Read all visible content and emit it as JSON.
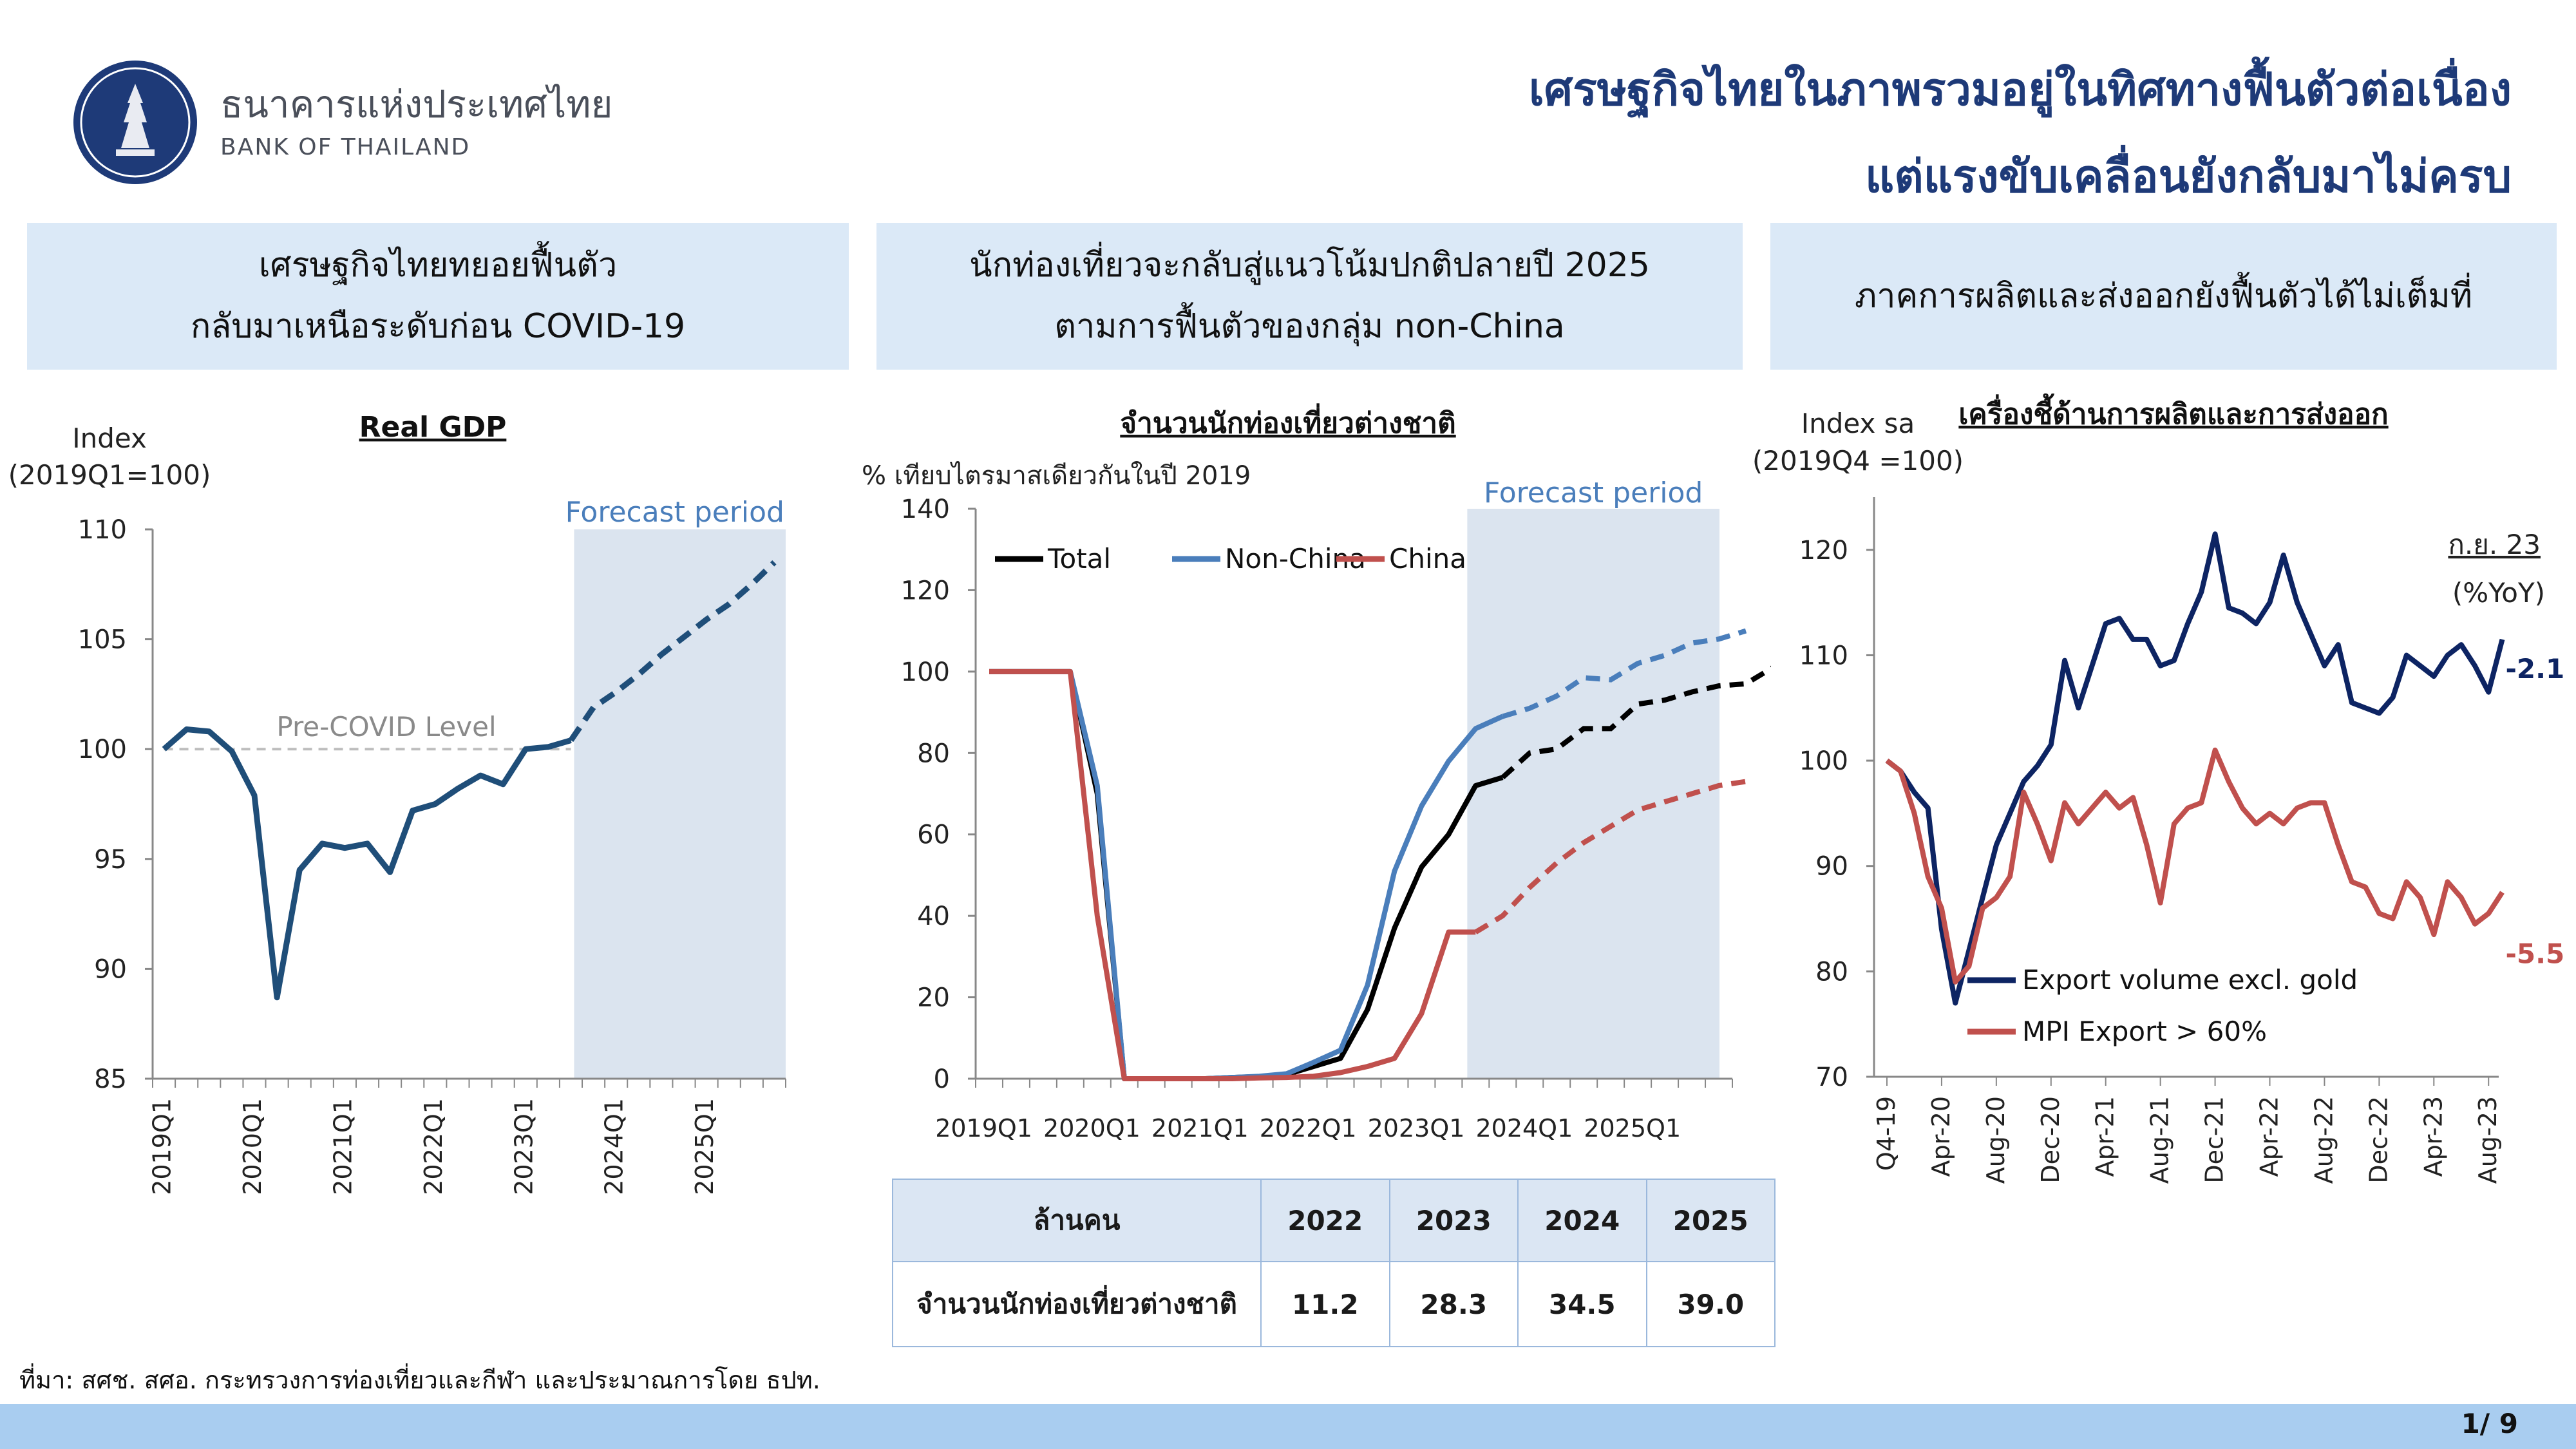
{
  "header": {
    "bank_name_th": "ธนาคารแห่งประเทศไทย",
    "bank_name_en": "BANK OF THAILAND",
    "title_line1": "เศรษฐกิจไทยในภาพรวมอยู่ในทิศทางฟื้นตัวต่อเนื่อง",
    "title_line2": "แต่แรงขับเคลื่อนยังกลับมาไม่ครบ"
  },
  "panels": [
    {
      "line1": "เศรษฐกิจไทยทยอยฟื้นตัว",
      "line2": "กลับมาเหนือระดับก่อน COVID-19"
    },
    {
      "line1": "นักท่องเที่ยวจะกลับสู่แนวโน้มปกติปลายปี 2025",
      "line2": "ตามการฟื้นตัวของกลุ่ม non-China"
    },
    {
      "line1": "ภาคการผลิตและส่งออกยังฟื้นตัวได้ไม่เต็มที่",
      "line2": ""
    }
  ],
  "colors": {
    "navy": "#1e3a78",
    "gdp_line": "#1f4e79",
    "forecast_shade": "#dbe4ef",
    "non_china": "#4a7ebb",
    "china": "#c0504d",
    "total": "#000000",
    "export_line": "#0d2463",
    "mpi_line": "#c0504d",
    "panel_bg": "#dbe9f7",
    "footer": "#a9cdf0"
  },
  "chart_data": [
    {
      "type": "line",
      "title": "Real GDP",
      "ylabel_line1": "Index",
      "ylabel_line2": "(2019Q1=100)",
      "ylim": [
        85,
        110
      ],
      "yticks": [
        85,
        90,
        95,
        100,
        105,
        110
      ],
      "xtick_labels": [
        "2019Q1",
        "2020Q1",
        "2021Q1",
        "2022Q1",
        "2023Q1",
        "2024Q1",
        "2025Q1"
      ],
      "forecast_label": "Forecast period",
      "reference_label": "Pre-COVID Level",
      "reference_value": 100,
      "actual": [
        100.0,
        100.9,
        100.8,
        99.9,
        97.9,
        88.7,
        94.5,
        95.7,
        95.5,
        95.7,
        94.4,
        97.2,
        97.5,
        98.2,
        98.8,
        98.4,
        100.0,
        100.1,
        100.4
      ],
      "forecast": [
        100.4,
        101.9,
        102.6,
        103.4,
        104.3,
        105.1,
        105.9,
        106.6,
        107.5,
        108.5
      ],
      "forecast_start_index": 18
    },
    {
      "type": "line",
      "title": "จำนวนนักท่องเที่ยวต่างชาติ",
      "ylabel": "% เทียบไตรมาสเดียวกันในปี 2019",
      "ylim": [
        0,
        140
      ],
      "yticks": [
        0,
        20,
        40,
        60,
        80,
        100,
        120,
        140
      ],
      "xtick_labels": [
        "2019Q1",
        "2020Q1",
        "2021Q1",
        "2022Q1",
        "2023Q1",
        "2024Q1",
        "2025Q1"
      ],
      "forecast_label": "Forecast period",
      "forecast_start_index": 18,
      "series": [
        {
          "name": "Total",
          "actual": [
            100,
            100,
            100,
            100,
            70,
            0,
            0,
            0,
            0,
            0.3,
            0.5,
            1,
            3,
            5,
            17,
            37,
            52,
            60,
            72,
            74
          ],
          "forecast": [
            74,
            80,
            81,
            86,
            86,
            92,
            93,
            95,
            96.5,
            97,
            101
          ]
        },
        {
          "name": "Non-China",
          "actual": [
            100,
            100,
            100,
            100,
            72,
            0,
            0,
            0,
            0,
            0.3,
            0.6,
            1.2,
            4,
            7,
            23,
            51,
            67,
            78,
            86,
            89
          ],
          "forecast": [
            89,
            91,
            94,
            98.5,
            98,
            102,
            104,
            107,
            108,
            110
          ]
        },
        {
          "name": "China",
          "actual": [
            100,
            100,
            100,
            100,
            40,
            0,
            0,
            0,
            0,
            0,
            0.2,
            0.3,
            0.6,
            1.5,
            3,
            5,
            16,
            36,
            36
          ],
          "forecast": [
            36,
            40,
            47,
            53,
            58,
            62,
            66,
            68,
            70,
            72,
            73
          ]
        }
      ],
      "table": {
        "header_label": "ล้านคน",
        "years": [
          "2022",
          "2023",
          "2024",
          "2025"
        ],
        "row_label": "จำนวนนักท่องเที่ยวต่างชาติ",
        "values": [
          "11.2",
          "28.3",
          "34.5",
          "39.0"
        ]
      }
    },
    {
      "type": "line",
      "title": "เครื่องชี้ด้านการผลิตและการส่งออก",
      "ylabel_line1": "Index sa",
      "ylabel_line2": "(2019Q4 =100)",
      "ylim": [
        70,
        125
      ],
      "yticks": [
        70,
        80,
        90,
        100,
        110,
        120
      ],
      "xtick_labels": [
        "Q4-19",
        "Apr-20",
        "Aug-20",
        "Dec-20",
        "Apr-21",
        "Aug-21",
        "Dec-21",
        "Apr-22",
        "Aug-22",
        "Dec-22",
        "Apr-23",
        "Aug-23"
      ],
      "yoy_label_line1": "ก.ย. 23",
      "yoy_label_line2": "(%YoY)",
      "series": [
        {
          "name": "Export volume excl. gold",
          "end_label": "-2.1",
          "values": [
            100,
            99,
            97,
            95.5,
            84,
            77,
            82,
            87,
            92,
            95,
            98,
            99.5,
            101.5,
            109.5,
            105,
            109,
            113,
            113.5,
            111.5,
            111.5,
            109,
            109.5,
            113,
            116,
            121.5,
            114.5,
            114,
            113,
            115,
            119.5,
            115,
            112,
            109,
            111,
            105.5,
            105,
            104.5,
            106,
            110,
            109,
            108,
            110,
            111,
            109,
            106.5,
            111.5
          ]
        },
        {
          "name": "MPI Export > 60%",
          "end_label": "-5.5",
          "values": [
            100,
            99,
            95,
            89,
            86,
            79,
            80.5,
            86,
            87,
            89,
            97,
            94,
            90.5,
            96,
            94,
            95.5,
            97,
            95.5,
            96.5,
            92,
            86.5,
            94,
            95.5,
            96,
            101,
            98,
            95.5,
            94,
            95,
            94,
            95.5,
            96,
            96,
            92,
            88.5,
            88,
            85.5,
            85,
            88.5,
            87,
            83.5,
            88.5,
            87,
            84.5,
            85.5,
            87.5
          ]
        }
      ]
    }
  ],
  "footer": {
    "source_note": "ที่มา: สศช. สศอ. กระทรวงการท่องเที่ยวและกีฬา และประมาณการโดย ธปท.",
    "page_number": "1/ 9"
  }
}
